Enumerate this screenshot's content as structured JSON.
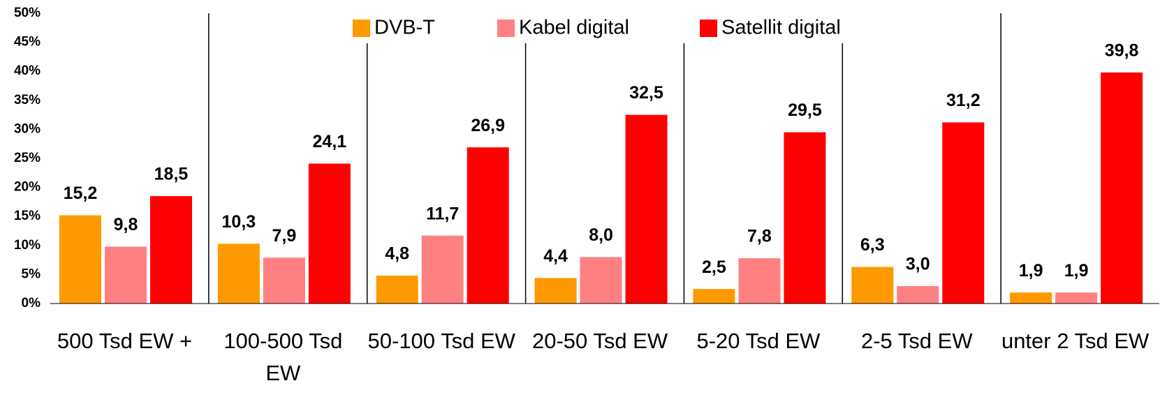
{
  "chart_data": {
    "type": "bar",
    "categories": [
      "500 Tsd EW +",
      "100-500 Tsd EW",
      "50-100 Tsd EW",
      "20-50 Tsd EW",
      "5-20 Tsd EW",
      "2-5 Tsd EW",
      "unter 2 Tsd EW"
    ],
    "series": [
      {
        "name": "DVB-T",
        "color": "#ff9900",
        "values": [
          15.2,
          10.3,
          4.8,
          4.4,
          2.5,
          6.3,
          1.9
        ],
        "value_labels": [
          "15,2",
          "10,3",
          "4,8",
          "4,4",
          "2,5",
          "6,3",
          "1,9"
        ]
      },
      {
        "name": "Kabel digital",
        "color": "#ff8080",
        "values": [
          9.8,
          7.9,
          11.7,
          8.0,
          7.8,
          3.0,
          1.9
        ],
        "value_labels": [
          "9,8",
          "7,9",
          "11,7",
          "8,0",
          "7,8",
          "3,0",
          "1,9"
        ]
      },
      {
        "name": "Satellit digital",
        "color": "#ff0000",
        "values": [
          18.5,
          24.1,
          26.9,
          32.5,
          29.5,
          31.2,
          39.8
        ],
        "value_labels": [
          "18,5",
          "24,1",
          "26,9",
          "32,5",
          "29,5",
          "31,2",
          "39,8"
        ]
      }
    ],
    "ylim": [
      0,
      50
    ],
    "yticks": [
      {
        "value": 0,
        "label": "0%"
      },
      {
        "value": 5,
        "label": "5%"
      },
      {
        "value": 10,
        "label": "10%"
      },
      {
        "value": 15,
        "label": "15%"
      },
      {
        "value": 20,
        "label": "20%"
      },
      {
        "value": 25,
        "label": "25%"
      },
      {
        "value": 30,
        "label": "30%"
      },
      {
        "value": 35,
        "label": "35%"
      },
      {
        "value": 40,
        "label": "40%"
      },
      {
        "value": 45,
        "label": "45%"
      },
      {
        "value": 50,
        "label": "50%"
      }
    ],
    "legend": "top"
  }
}
